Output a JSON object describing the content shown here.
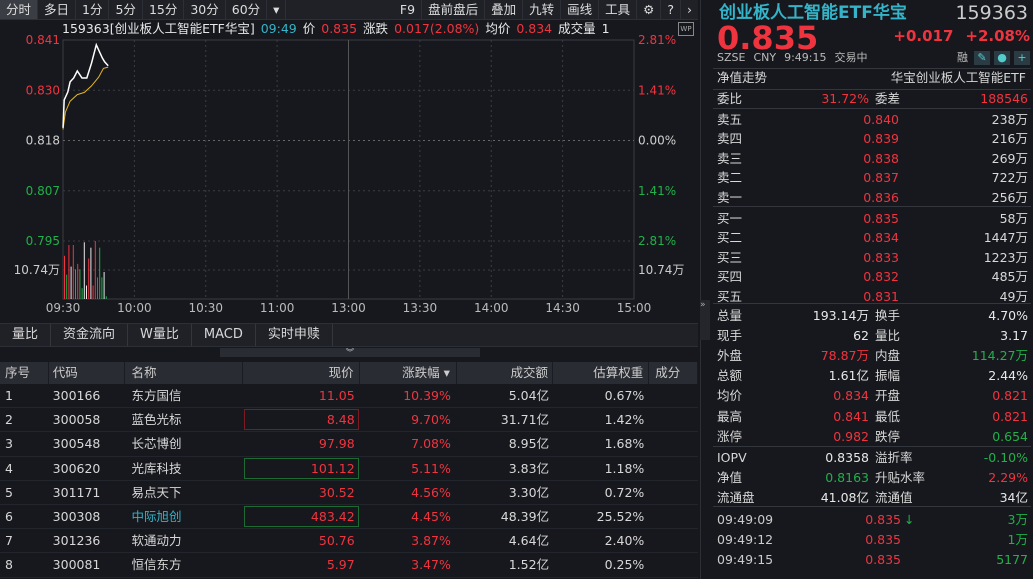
{
  "toolbar": {
    "periods": [
      "分时",
      "多日",
      "1分",
      "5分",
      "15分",
      "30分",
      "60分"
    ],
    "more": "▾",
    "tools": [
      "F9",
      "盘前盘后",
      "叠加",
      "九转",
      "画线",
      "工具"
    ],
    "settings_icon": "gear-icon",
    "help_icon": "help-icon",
    "next_icon": "chevron-right-icon"
  },
  "info": {
    "code_name": "159363[创业板人工智能ETF华宝]",
    "time": "09:49",
    "price_label": "价",
    "price": "0.835",
    "change_label": "涨跌",
    "change": "0.017(2.08%)",
    "avg_label": "均价",
    "avg": "0.834",
    "vol_label": "成交量",
    "vol": "1",
    "wp": "WP"
  },
  "chart_data": {
    "type": "line",
    "prev_close": 0.818,
    "y_ticks": [
      "0.841",
      "0.830",
      "0.818",
      "0.807",
      "0.795"
    ],
    "pct_ticks": [
      "2.81%",
      "1.41%",
      "0.00%",
      "1.41%",
      "2.81%"
    ],
    "vol_tick": "10.74万",
    "x_ticks": [
      "09:30",
      "10:00",
      "10:30",
      "11:00",
      "13:00",
      "13:30",
      "14:00",
      "14:30",
      "15:00"
    ],
    "ylim": [
      0.795,
      0.841
    ],
    "price": [
      [
        0,
        0.8209
      ],
      [
        0.5,
        0.8273
      ],
      [
        2,
        0.8291
      ],
      [
        3,
        0.8314
      ],
      [
        4.5,
        0.8323
      ],
      [
        6,
        0.8339
      ],
      [
        8,
        0.8323
      ],
      [
        10,
        0.8323
      ],
      [
        12,
        0.8357
      ],
      [
        14,
        0.8399
      ],
      [
        16.5,
        0.8369
      ],
      [
        17.5,
        0.836
      ],
      [
        19,
        0.8351
      ]
    ],
    "avg": [
      [
        0,
        0.8205
      ],
      [
        1,
        0.8245
      ],
      [
        3,
        0.827
      ],
      [
        6,
        0.8285
      ],
      [
        9,
        0.829
      ],
      [
        12,
        0.8305
      ],
      [
        15,
        0.8325
      ],
      [
        17,
        0.8345
      ],
      [
        19,
        0.8348
      ]
    ],
    "volume_unit": "万",
    "volume_ref": 10.74,
    "volumes": [
      {
        "v": 16,
        "c": "red"
      },
      {
        "v": 9,
        "c": "green"
      },
      {
        "v": 20,
        "c": "red"
      },
      {
        "v": 12,
        "c": "white"
      },
      {
        "v": 20,
        "c": "red"
      },
      {
        "v": 11,
        "c": "green"
      },
      {
        "v": 13,
        "c": "red"
      },
      {
        "v": 11,
        "c": "green"
      },
      {
        "v": 4,
        "c": "green"
      },
      {
        "v": 21,
        "c": "white"
      },
      {
        "v": 5,
        "c": "white"
      },
      {
        "v": 15,
        "c": "red"
      },
      {
        "v": 19,
        "c": "white"
      },
      {
        "v": 5,
        "c": "red"
      },
      {
        "v": 30,
        "c": "red"
      },
      {
        "v": 8,
        "c": "red"
      },
      {
        "v": 19,
        "c": "green"
      },
      {
        "v": 8,
        "c": "green"
      },
      {
        "v": 10,
        "c": "white"
      },
      {
        "v": 1,
        "c": "green"
      }
    ],
    "colors": {
      "up": "#f0343f",
      "down": "#22b04a",
      "price_line": "#ffffff",
      "avg_line": "#e6b422"
    }
  },
  "tabs": [
    "量比",
    "资金流向",
    "W量比",
    "MACD",
    "实时申赎"
  ],
  "table": {
    "headers": [
      "序号",
      "代码",
      "名称",
      "现价",
      "涨跌幅 ▾",
      "成交额",
      "估算权重",
      "成分"
    ],
    "rows": [
      [
        "1",
        "300166",
        "东方国信",
        "11.05",
        "10.39%",
        "5.04亿",
        "0.67%"
      ],
      [
        "2",
        "300058",
        "蓝色光标",
        "8.48",
        "9.70%",
        "31.71亿",
        "1.42%"
      ],
      [
        "3",
        "300548",
        "长芯博创",
        "97.98",
        "7.08%",
        "8.95亿",
        "1.68%"
      ],
      [
        "4",
        "300620",
        "光库科技",
        "101.12",
        "5.11%",
        "3.83亿",
        "1.18%"
      ],
      [
        "5",
        "301171",
        "易点天下",
        "30.52",
        "4.56%",
        "3.30亿",
        "0.72%"
      ],
      [
        "6",
        "300308",
        "中际旭创",
        "483.42",
        "4.45%",
        "48.39亿",
        "25.52%"
      ],
      [
        "7",
        "301236",
        "软通动力",
        "50.76",
        "3.87%",
        "4.64亿",
        "2.40%"
      ],
      [
        "8",
        "300081",
        "恒信东方",
        "5.97",
        "3.47%",
        "1.52亿",
        "0.25%"
      ]
    ]
  },
  "quote": {
    "name": "创业板人工智能ETF华宝",
    "code": "159363",
    "price": "0.835",
    "change": "+0.017",
    "change_pct": "+2.08%",
    "exchange": "SZSE",
    "currency": "CNY",
    "time": "9:49:15",
    "status": "交易中",
    "rong": "融",
    "nav_trend": "净值走势",
    "fund_name": "华宝创业板人工智能ETF",
    "weibi_label": "委比",
    "weibi": "31.72%",
    "weicha_label": "委差",
    "weicha": "188546",
    "sells": [
      [
        "卖五",
        "0.840",
        "238万"
      ],
      [
        "卖四",
        "0.839",
        "216万"
      ],
      [
        "卖三",
        "0.838",
        "269万"
      ],
      [
        "卖二",
        "0.837",
        "722万"
      ],
      [
        "卖一",
        "0.836",
        "256万"
      ]
    ],
    "buys": [
      [
        "买一",
        "0.835",
        "58万"
      ],
      [
        "买二",
        "0.834",
        "1447万"
      ],
      [
        "买三",
        "0.833",
        "1223万"
      ],
      [
        "买四",
        "0.832",
        "485万"
      ],
      [
        "买五",
        "0.831",
        "49万"
      ]
    ],
    "stats": [
      [
        "总量",
        "193.14万",
        "white",
        "换手",
        "4.70%",
        "white"
      ],
      [
        "现手",
        "62",
        "white",
        "量比",
        "3.17",
        "white"
      ],
      [
        "外盘",
        "78.87万",
        "red",
        "内盘",
        "114.27万",
        "green"
      ],
      [
        "总额",
        "1.61亿",
        "white",
        "振幅",
        "2.44%",
        "white"
      ],
      [
        "均价",
        "0.834",
        "red",
        "开盘",
        "0.821",
        "red"
      ],
      [
        "最高",
        "0.841",
        "red",
        "最低",
        "0.821",
        "red"
      ],
      [
        "涨停",
        "0.982",
        "red",
        "跌停",
        "0.654",
        "green"
      ]
    ],
    "fund": [
      [
        "IOPV",
        "0.8358",
        "white",
        "溢折率",
        "-0.10%",
        "green"
      ],
      [
        "净值",
        "0.8163",
        "green",
        "升贴水率",
        "2.29%",
        "red"
      ],
      [
        "流通盘",
        "41.08亿",
        "white",
        "流通值",
        "34亿",
        "white"
      ]
    ],
    "ticks": [
      [
        "09:49:09",
        "0.835",
        "↓",
        "3万"
      ],
      [
        "09:49:12",
        "0.835",
        "",
        "1万"
      ],
      [
        "09:49:15",
        "0.835",
        "",
        "5177"
      ]
    ]
  }
}
